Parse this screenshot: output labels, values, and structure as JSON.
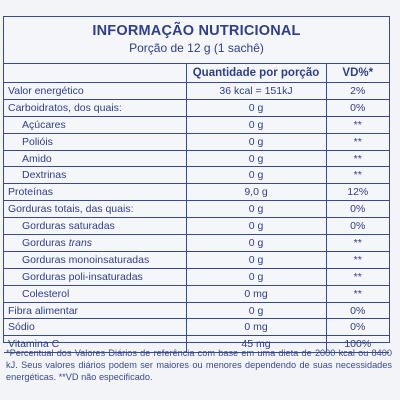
{
  "header": {
    "title": "INFORMAÇÃO NUTRICIONAL",
    "subtitle": "Porção de 12 g (1 sachê)"
  },
  "table": {
    "col_quantity": "Quantidade por porção",
    "col_vd": "VD%*",
    "rows": [
      {
        "name": "Valor energético",
        "value": "36 kcal = 151kJ",
        "vd": "2%"
      },
      {
        "name": "Carboidratos, dos quais:",
        "value": "0 g",
        "vd": "0%"
      },
      {
        "name": "Açúcares",
        "value": "0 g",
        "vd": "**"
      },
      {
        "name": "Polióis",
        "value": "0 g",
        "vd": "**"
      },
      {
        "name": "Amido",
        "value": "0 g",
        "vd": "**"
      },
      {
        "name": "Dextrinas",
        "value": "0 g",
        "vd": "**"
      },
      {
        "name": "Proteínas",
        "value": "9,0 g",
        "vd": "12%"
      },
      {
        "name": "Gorduras totais, das quais:",
        "value": "0 g",
        "vd": "0%"
      },
      {
        "name": "Gorduras saturadas",
        "value": "0 g",
        "vd": "0%"
      },
      {
        "name_prefix": "Gorduras ",
        "name_italic": "trans",
        "value": "0 g",
        "vd": "**"
      },
      {
        "name": "Gorduras monoinsaturadas",
        "value": "0 g",
        "vd": "**"
      },
      {
        "name": "Gorduras poli-insaturadas",
        "value": "0 g",
        "vd": "**"
      },
      {
        "name": "Colesterol",
        "value": "0 mg",
        "vd": "**"
      },
      {
        "name": "Fibra alimentar",
        "value": "0 g",
        "vd": "0%"
      },
      {
        "name": "Sódio",
        "value": "0 mg",
        "vd": "0%"
      },
      {
        "name": "Vitamina C",
        "value": "45 mg",
        "vd": "100%"
      }
    ]
  },
  "footnote": "*Percentual dos Valores Diários de referência com base em uma dieta de 2000 kcal ou 8400 kJ. Seus valores diários podem ser maiores ou menores dependendo de suas necessidades energéticas. **VD não especificado."
}
